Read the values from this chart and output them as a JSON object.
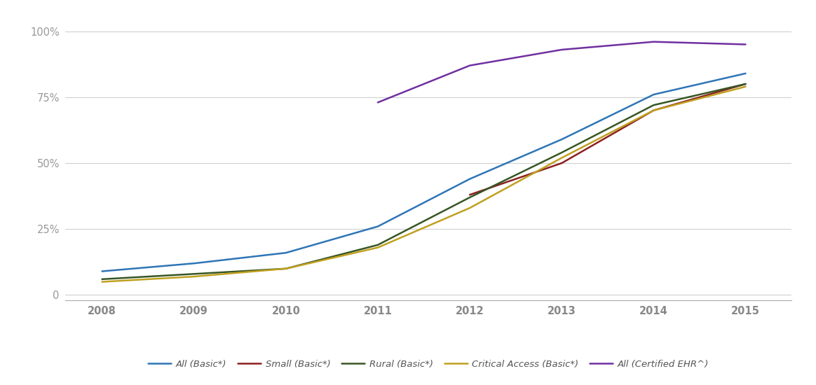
{
  "years": [
    2008,
    2009,
    2010,
    2011,
    2012,
    2013,
    2014,
    2015
  ],
  "series": [
    {
      "key": "All (Basic*)",
      "values": [
        0.09,
        0.12,
        0.16,
        0.26,
        0.44,
        0.59,
        0.76,
        0.84
      ],
      "color": "#2e75b6",
      "label": "All (Basic*)"
    },
    {
      "key": "Small (Basic*)",
      "values": [
        null,
        null,
        null,
        null,
        0.38,
        0.5,
        0.7,
        0.8
      ],
      "color": "#8B2020",
      "label": "Small (Basic*)"
    },
    {
      "key": "Rural (Basic*)",
      "values": [
        0.06,
        0.08,
        0.1,
        0.19,
        0.37,
        0.54,
        0.72,
        0.8
      ],
      "color": "#375623",
      "label": "Rural (Basic*)"
    },
    {
      "key": "Critical Access (Basic*)",
      "values": [
        0.05,
        0.07,
        0.1,
        0.18,
        0.33,
        0.52,
        0.7,
        0.79
      ],
      "color": "#BFA020",
      "label": "Critical Access (Basic*)"
    },
    {
      "key": "All (Certified EHR^)",
      "values": [
        null,
        null,
        null,
        0.73,
        0.87,
        0.93,
        0.96,
        0.95
      ],
      "color": "#7030a0",
      "label": "All (Certified EHR^)"
    }
  ],
  "ylim": [
    -0.02,
    1.06
  ],
  "xlim": [
    2007.6,
    2015.5
  ],
  "yticks": [
    0,
    0.25,
    0.5,
    0.75,
    1.0
  ],
  "ytick_labels": [
    "0",
    "25%",
    "50%",
    "75%",
    "100%"
  ],
  "xticks": [
    2008,
    2009,
    2010,
    2011,
    2012,
    2013,
    2014,
    2015
  ],
  "background_color": "#ffffff",
  "grid_color": "#d0d0d0",
  "line_width": 1.8,
  "legend_fontsize": 9.5,
  "tick_fontsize": 10.5,
  "tick_color": "#999999",
  "xtick_color": "#888888",
  "legend_ncol": 5
}
